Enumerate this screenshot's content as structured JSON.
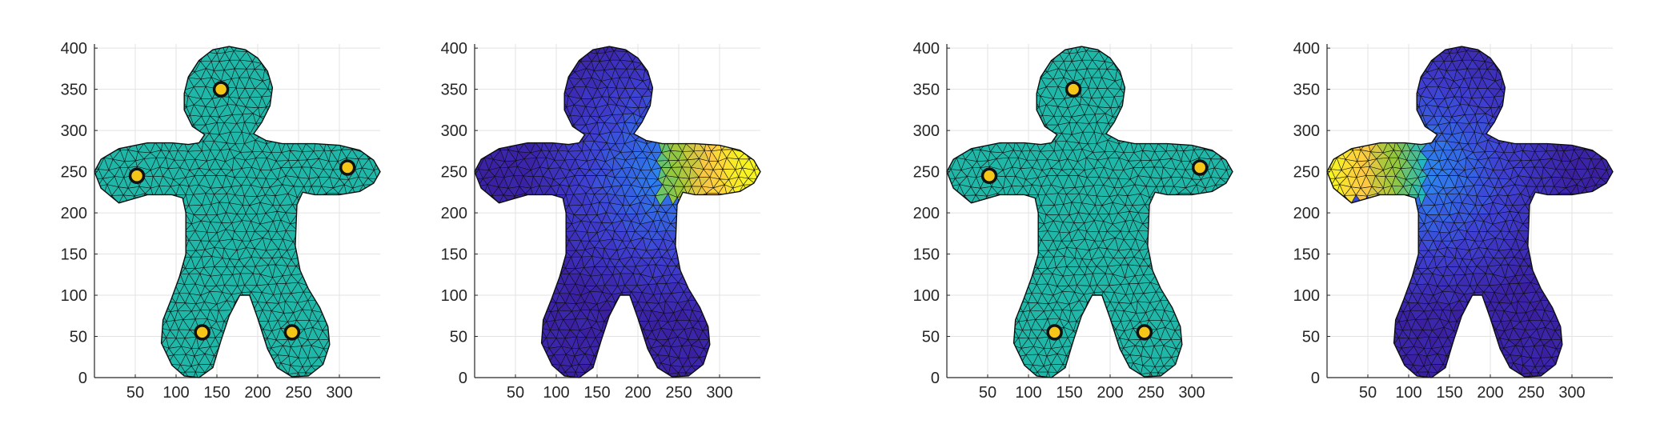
{
  "chart_data": [
    {
      "type": "heatmap",
      "subtype": "triangle-mesh",
      "fill": "uniform",
      "fill_color": "#1fb8a8",
      "markers": [
        {
          "x": 155,
          "y": 350
        },
        {
          "x": 52,
          "y": 245
        },
        {
          "x": 310,
          "y": 255
        },
        {
          "x": 132,
          "y": 55
        },
        {
          "x": 242,
          "y": 55
        }
      ],
      "marker_color": "#f5c518",
      "xlim": [
        0,
        350
      ],
      "ylim": [
        0,
        405
      ],
      "xticks": [
        "50",
        "100",
        "150",
        "200",
        "250",
        "300"
      ],
      "yticks": [
        "0",
        "50",
        "100",
        "150",
        "200",
        "250",
        "300",
        "350",
        "400"
      ],
      "grid": true
    },
    {
      "type": "heatmap",
      "subtype": "triangle-mesh",
      "fill": "gradient",
      "hotspot": "right arm",
      "colormap": [
        "#3a1fa0",
        "#3f3fd2",
        "#2e7ff0",
        "#22b8c0",
        "#96c83a",
        "#ffc842",
        "#f7f420"
      ],
      "xlim": [
        0,
        350
      ],
      "ylim": [
        0,
        405
      ],
      "xticks": [
        "50",
        "100",
        "150",
        "200",
        "250",
        "300"
      ],
      "yticks": [
        "0",
        "50",
        "100",
        "150",
        "200",
        "250",
        "300",
        "350",
        "400"
      ],
      "grid": true
    },
    {
      "type": "heatmap",
      "subtype": "triangle-mesh",
      "fill": "uniform",
      "fill_color": "#1fb8a8",
      "markers": [
        {
          "x": 155,
          "y": 350
        },
        {
          "x": 52,
          "y": 245
        },
        {
          "x": 310,
          "y": 255
        },
        {
          "x": 132,
          "y": 55
        },
        {
          "x": 242,
          "y": 55
        }
      ],
      "marker_color": "#f5c518",
      "xlim": [
        0,
        350
      ],
      "ylim": [
        0,
        405
      ],
      "xticks": [
        "50",
        "100",
        "150",
        "200",
        "250",
        "300"
      ],
      "yticks": [
        "0",
        "50",
        "100",
        "150",
        "200",
        "250",
        "300",
        "350",
        "400"
      ],
      "grid": true
    },
    {
      "type": "heatmap",
      "subtype": "triangle-mesh",
      "fill": "gradient",
      "hotspot": "left arm",
      "colormap": [
        "#3a1fa0",
        "#3f3fd2",
        "#2e7ff0",
        "#22b8c0",
        "#96c83a",
        "#ffc842",
        "#f7f420"
      ],
      "xlim": [
        0,
        350
      ],
      "ylim": [
        0,
        405
      ],
      "xticks": [
        "50",
        "100",
        "150",
        "200",
        "250",
        "300"
      ],
      "yticks": [
        "0",
        "50",
        "100",
        "150",
        "200",
        "250",
        "300",
        "350",
        "400"
      ],
      "grid": true
    }
  ]
}
